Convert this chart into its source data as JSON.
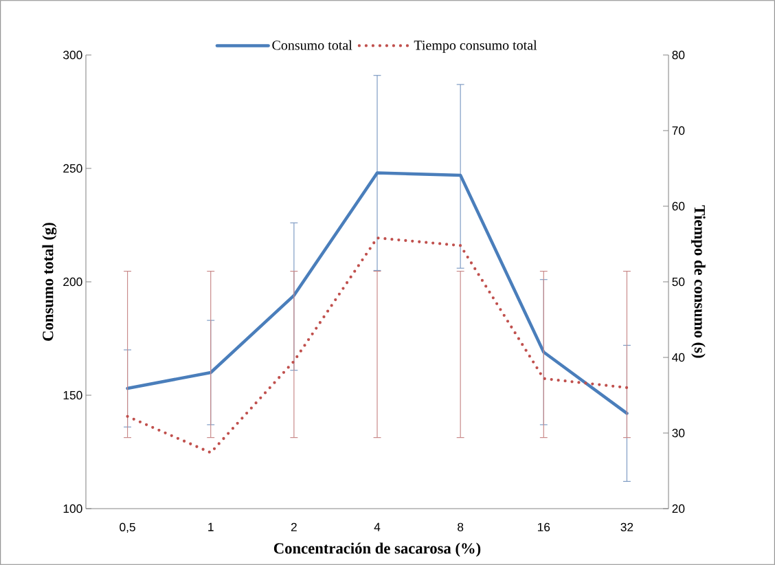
{
  "chart_data": {
    "type": "line",
    "xlabel": "Concentración de sacarosa (%)",
    "ylabel": "Consumo total (g)",
    "y2label": "Tiempo de consumo (s)",
    "categories": [
      "0,5",
      "1",
      "2",
      "4",
      "8",
      "16",
      "32"
    ],
    "ylim": [
      100,
      300
    ],
    "yticks": [
      100,
      150,
      200,
      250,
      300
    ],
    "y2lim": [
      20,
      80
    ],
    "y2ticks": [
      20,
      30,
      40,
      50,
      60,
      70,
      80
    ],
    "legend": "top",
    "grid": false,
    "marker": "none",
    "series": [
      {
        "name": "Consumo total",
        "color": "#4a7ebb",
        "line_style": "solid",
        "values": [
          153,
          160,
          194,
          248,
          247,
          169,
          142
        ],
        "errors": [
          [
            136,
            170
          ],
          [
            137,
            183
          ],
          [
            161,
            226
          ],
          [
            205,
            291
          ],
          [
            206,
            287
          ],
          [
            137,
            201
          ],
          [
            112,
            172
          ]
        ]
      },
      {
        "name": "Tiempo consumo total",
        "color": "#c0504d",
        "line_style": "dotted",
        "axis": "y2",
        "values": [
          32.2,
          27.4,
          39.5,
          55.8,
          54.8,
          37.2,
          36.0
        ],
        "errors": [
          [
            29.4,
            51.4
          ],
          [
            29.4,
            51.4
          ],
          [
            29.4,
            51.4
          ],
          [
            29.4,
            51.4
          ],
          [
            29.4,
            51.4
          ],
          [
            29.4,
            51.4
          ],
          [
            29.4,
            51.4
          ]
        ]
      }
    ]
  }
}
